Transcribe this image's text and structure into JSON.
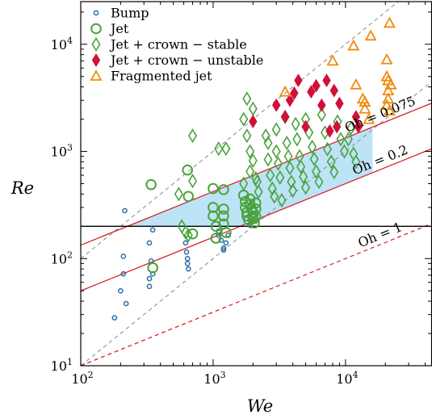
{
  "chart_data": {
    "type": "scatter",
    "xscale": "log",
    "yscale": "log",
    "xlim": [
      100,
      45000
    ],
    "ylim": [
      10,
      25000
    ],
    "xlabel": "We",
    "ylabel": "Re",
    "xticks": [
      {
        "value": 100,
        "mant": "10",
        "exp": "2"
      },
      {
        "value": 1000,
        "mant": "10",
        "exp": "3"
      },
      {
        "value": 10000,
        "mant": "10",
        "exp": "4"
      }
    ],
    "yticks": [
      {
        "value": 10,
        "mant": "10",
        "exp": "1"
      },
      {
        "value": 100,
        "mant": "10",
        "exp": "2"
      },
      {
        "value": 1000,
        "mant": "10",
        "exp": "3"
      },
      {
        "value": 10000,
        "mant": "10",
        "exp": "4"
      }
    ],
    "grid": false,
    "legend_position": "top-left",
    "colors": {
      "bump": "#2e6ea6",
      "jet": "#4aa33b",
      "stable": "#4aa33b",
      "unstable": "#d0103a",
      "fragmented": "#f08a0c",
      "oh_line": "#d62728",
      "region": "#bde3f6",
      "guide": "#9a9a9a"
    },
    "series": [
      {
        "name": "Bump",
        "marker": "small-circle",
        "points": [
          [
            180,
            28
          ],
          [
            200,
            50
          ],
          [
            210,
            105
          ],
          [
            210,
            72
          ],
          [
            220,
            38
          ],
          [
            215,
            280
          ],
          [
            330,
            140
          ],
          [
            330,
            65
          ],
          [
            330,
            55
          ],
          [
            340,
            95
          ],
          [
            350,
            185
          ],
          [
            350,
            72
          ],
          [
            620,
            140
          ],
          [
            630,
            115
          ],
          [
            640,
            100
          ],
          [
            640,
            90
          ],
          [
            650,
            80
          ],
          [
            1100,
            180
          ],
          [
            1100,
            165
          ],
          [
            1150,
            148
          ],
          [
            1200,
            125
          ],
          [
            1200,
            120
          ],
          [
            1250,
            140
          ],
          [
            1300,
            165
          ],
          [
            1900,
            205
          ],
          [
            2000,
            230
          ]
        ]
      },
      {
        "name": "Jet",
        "marker": "circle",
        "points": [
          [
            340,
            490
          ],
          [
            350,
            82
          ],
          [
            640,
            670
          ],
          [
            650,
            380
          ],
          [
            700,
            170
          ],
          [
            1000,
            450
          ],
          [
            1000,
            300
          ],
          [
            1000,
            250
          ],
          [
            1050,
            200
          ],
          [
            1050,
            155
          ],
          [
            1200,
            440
          ],
          [
            1200,
            290
          ],
          [
            1200,
            250
          ],
          [
            1200,
            210
          ],
          [
            1250,
            175
          ],
          [
            1700,
            390
          ],
          [
            1750,
            340
          ],
          [
            1750,
            300
          ],
          [
            1800,
            270
          ],
          [
            1800,
            250
          ],
          [
            1850,
            230
          ],
          [
            1900,
            360
          ],
          [
            1900,
            320
          ],
          [
            1950,
            290
          ],
          [
            2000,
            270
          ],
          [
            2000,
            250
          ],
          [
            2000,
            235
          ],
          [
            2050,
            215
          ],
          [
            2100,
            330
          ],
          [
            2100,
            290
          ],
          [
            2100,
            245
          ]
        ]
      },
      {
        "name": "Jet + crown − stable",
        "marker": "diamond",
        "points": [
          [
            550,
            400
          ],
          [
            580,
            200
          ],
          [
            620,
            175
          ],
          [
            650,
            165
          ],
          [
            700,
            1400
          ],
          [
            700,
            530
          ],
          [
            1100,
            1060
          ],
          [
            1250,
            1060
          ],
          [
            1700,
            2000
          ],
          [
            1700,
            500
          ],
          [
            1800,
            3100
          ],
          [
            1800,
            1400
          ],
          [
            1900,
            1000
          ],
          [
            1900,
            650
          ],
          [
            2000,
            2500
          ],
          [
            2000,
            820
          ],
          [
            2100,
            560
          ],
          [
            2150,
            520
          ],
          [
            2200,
            420
          ],
          [
            2500,
            1400
          ],
          [
            2600,
            1200
          ],
          [
            2600,
            840
          ],
          [
            2700,
            600
          ],
          [
            2800,
            450
          ],
          [
            2900,
            380
          ],
          [
            3000,
            1600
          ],
          [
            3000,
            1000
          ],
          [
            3100,
            770
          ],
          [
            3200,
            570
          ],
          [
            3300,
            350
          ],
          [
            3500,
            2100
          ],
          [
            3600,
            1200
          ],
          [
            3700,
            900
          ],
          [
            3800,
            700
          ],
          [
            3900,
            520
          ],
          [
            4000,
            430
          ],
          [
            4200,
            1800
          ],
          [
            4300,
            1300
          ],
          [
            4500,
            900
          ],
          [
            4600,
            720
          ],
          [
            4800,
            580
          ],
          [
            5000,
            460
          ],
          [
            5000,
            2000
          ],
          [
            5300,
            1500
          ],
          [
            5600,
            1100
          ],
          [
            5800,
            850
          ],
          [
            6000,
            650
          ],
          [
            6300,
            520
          ],
          [
            6600,
            2200
          ],
          [
            7000,
            1500
          ],
          [
            7300,
            1050
          ],
          [
            7800,
            800
          ],
          [
            8200,
            640
          ],
          [
            8700,
            1900
          ],
          [
            9200,
            1300
          ],
          [
            9800,
            1000
          ],
          [
            10500,
            1300
          ],
          [
            11000,
            1650
          ],
          [
            11500,
            950
          ],
          [
            12000,
            800
          ]
        ]
      },
      {
        "name": "Jet + crown − unstable",
        "marker": "filled-diamond",
        "points": [
          [
            2000,
            1900
          ],
          [
            3000,
            2700
          ],
          [
            3500,
            2100
          ],
          [
            3800,
            3000
          ],
          [
            4100,
            3500
          ],
          [
            4400,
            4600
          ],
          [
            5000,
            1700
          ],
          [
            5500,
            3600
          ],
          [
            6000,
            4100
          ],
          [
            6600,
            2700
          ],
          [
            7200,
            4600
          ],
          [
            7600,
            1550
          ],
          [
            8200,
            3700
          ],
          [
            8600,
            1700
          ],
          [
            9000,
            2800
          ],
          [
            12000,
            2100
          ],
          [
            12500,
            1700
          ]
        ]
      },
      {
        "name": "Fragmented jet",
        "marker": "triangle",
        "points": [
          [
            3500,
            3600
          ],
          [
            8000,
            7000
          ],
          [
            11500,
            9700
          ],
          [
            12000,
            4200
          ],
          [
            13500,
            3100
          ],
          [
            14000,
            2900
          ],
          [
            14000,
            2500
          ],
          [
            15000,
            2000
          ],
          [
            15500,
            12000
          ],
          [
            20500,
            7200
          ],
          [
            21500,
            15800
          ],
          [
            21000,
            4600
          ],
          [
            21000,
            3100
          ],
          [
            20500,
            2700
          ],
          [
            21500,
            2400
          ],
          [
            20500,
            5000
          ],
          [
            21000,
            3700
          ],
          [
            22000,
            4200
          ]
        ]
      }
    ],
    "annotations": [
      {
        "text": "Oh = 0.075",
        "oh": 0.075
      },
      {
        "text": "Oh = 0.2",
        "oh": 0.2
      },
      {
        "text": "Oh = 1",
        "oh": 1
      }
    ],
    "horizontal_line_re": 200
  }
}
